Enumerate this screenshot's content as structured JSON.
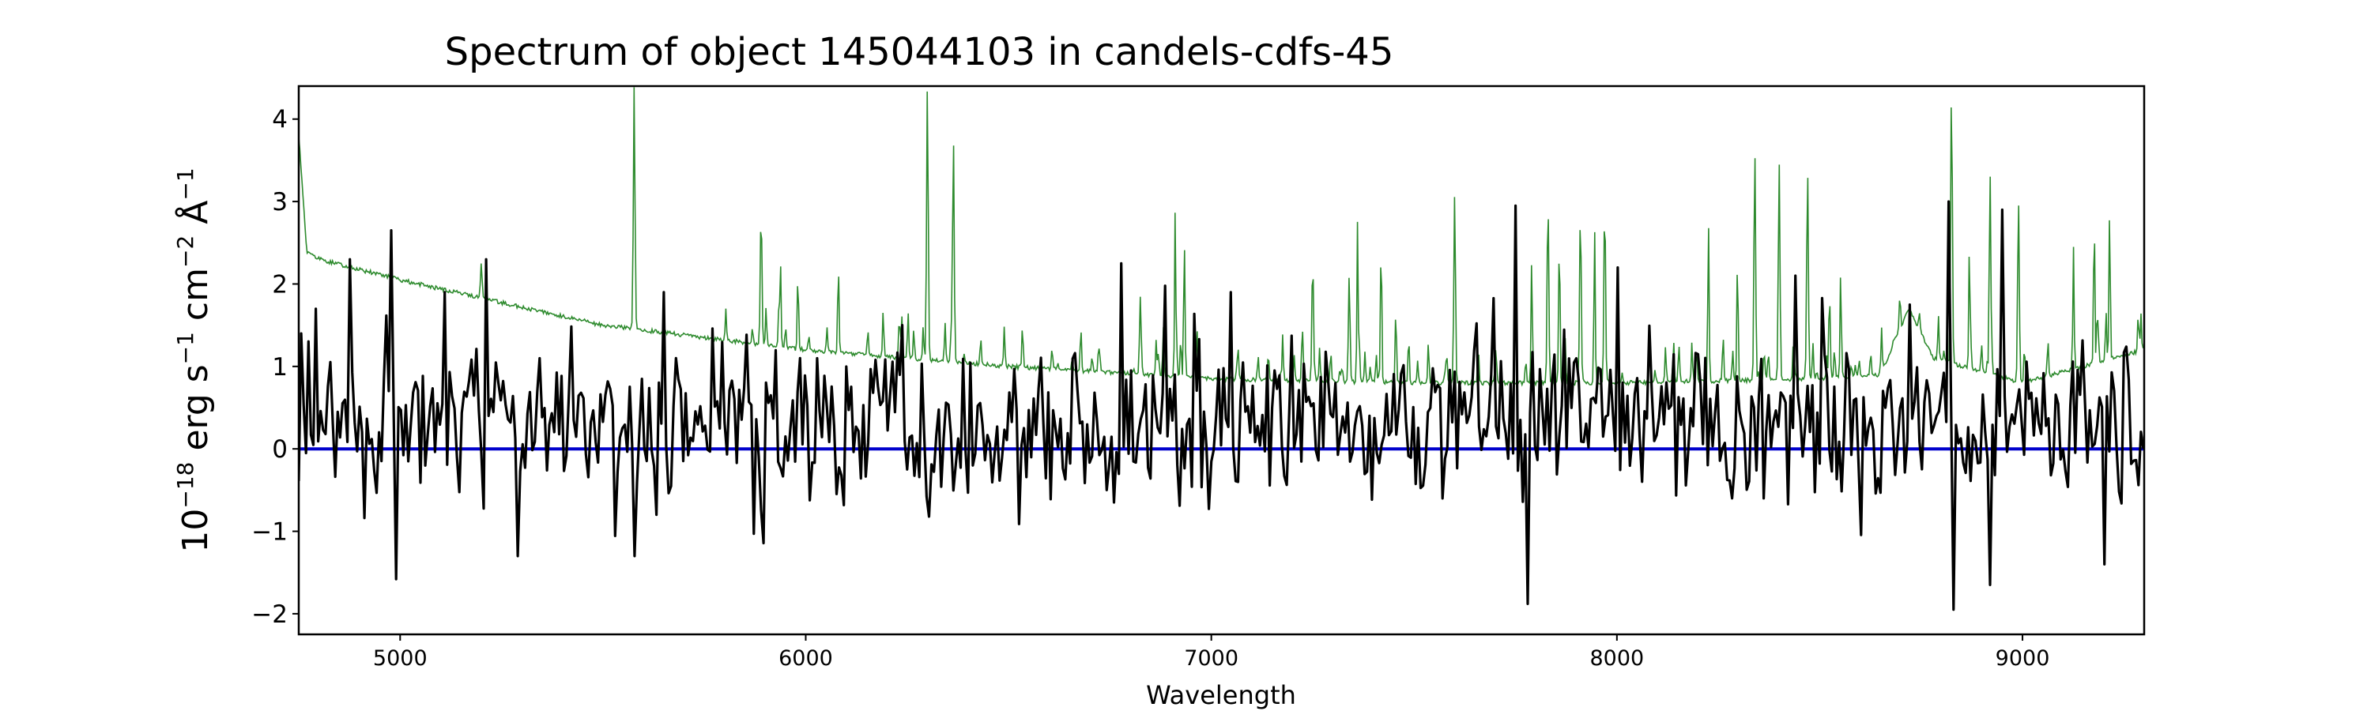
{
  "chart_data": {
    "type": "line",
    "title": "Spectrum of object 145044103 in candels-cdfs-45",
    "xlabel": "Wavelength",
    "ylabel": {
      "base": "10",
      "exp_main": "−18",
      "text_erg": " erg s",
      "exp_s": "−1",
      "text_cm": " cm",
      "exp_cm": "−2",
      "text_angstrom": " Å",
      "exp_angstrom": "−1"
    },
    "xlim": [
      4750,
      9300
    ],
    "ylim": [
      -2.25,
      4.4
    ],
    "xticks": [
      5000,
      6000,
      7000,
      8000,
      9000
    ],
    "yticks": [
      -2,
      -1,
      0,
      1,
      2,
      3,
      4
    ],
    "ytick_labels": [
      "−2",
      "−1",
      "0",
      "1",
      "2",
      "3",
      "4"
    ],
    "grid": false,
    "series": [
      {
        "role": "flux",
        "color": "#000000",
        "noise_sigma": 0.6,
        "anchors": [
          {
            "x": 4755,
            "y": 1.4
          },
          {
            "x": 4790,
            "y": 1.7
          },
          {
            "x": 4875,
            "y": 2.3
          },
          {
            "x": 4980,
            "y": 2.65
          },
          {
            "x": 4990,
            "y": -1.58
          },
          {
            "x": 5110,
            "y": 1.9
          },
          {
            "x": 5210,
            "y": 2.3
          },
          {
            "x": 5290,
            "y": -1.3
          },
          {
            "x": 5580,
            "y": -1.3
          },
          {
            "x": 5650,
            "y": 1.9
          },
          {
            "x": 6240,
            "y": 1.5
          },
          {
            "x": 7050,
            "y": 1.9
          },
          {
            "x": 7750,
            "y": 2.95
          },
          {
            "x": 7780,
            "y": -1.88
          },
          {
            "x": 8000,
            "y": 2.2
          },
          {
            "x": 8440,
            "y": 2.1
          },
          {
            "x": 8720,
            "y": 1.75
          },
          {
            "x": 8820,
            "y": 3.0
          },
          {
            "x": 8830,
            "y": -1.95
          },
          {
            "x": 8920,
            "y": -1.65
          },
          {
            "x": 8950,
            "y": 2.9
          },
          {
            "x": 9200,
            "y": -1.4
          },
          {
            "x": 9300,
            "y": 0.0
          }
        ]
      },
      {
        "role": "model",
        "color": "#2e8b2e",
        "continuum": [
          {
            "x": 4750,
            "y": 3.8
          },
          {
            "x": 4770,
            "y": 2.4
          },
          {
            "x": 4800,
            "y": 2.3
          },
          {
            "x": 5000,
            "y": 2.05
          },
          {
            "x": 5500,
            "y": 1.5
          },
          {
            "x": 6000,
            "y": 1.2
          },
          {
            "x": 6500,
            "y": 1.0
          },
          {
            "x": 7000,
            "y": 0.85
          },
          {
            "x": 7500,
            "y": 0.8
          },
          {
            "x": 8000,
            "y": 0.8
          },
          {
            "x": 8500,
            "y": 0.85
          },
          {
            "x": 8650,
            "y": 0.9
          },
          {
            "x": 8720,
            "y": 1.7
          },
          {
            "x": 8780,
            "y": 1.1
          },
          {
            "x": 9000,
            "y": 0.8
          },
          {
            "x": 9300,
            "y": 1.2
          }
        ],
        "emission_lines": [
          {
            "x": 5577,
            "y": 4.4
          },
          {
            "x": 5890,
            "y": 2.9
          },
          {
            "x": 6300,
            "y": 4.4
          },
          {
            "x": 6364,
            "y": 3.8
          },
          {
            "x": 5200,
            "y": 2.25
          },
          {
            "x": 6825,
            "y": 1.85
          },
          {
            "x": 7250,
            "y": 2.3
          },
          {
            "x": 7340,
            "y": 2.1
          },
          {
            "x": 7600,
            "y": 3.1
          },
          {
            "x": 7830,
            "y": 3.05
          },
          {
            "x": 7910,
            "y": 2.9
          },
          {
            "x": 7970,
            "y": 3.0
          },
          {
            "x": 8340,
            "y": 3.65
          },
          {
            "x": 8400,
            "y": 3.5
          },
          {
            "x": 8470,
            "y": 3.4
          },
          {
            "x": 8825,
            "y": 4.4
          },
          {
            "x": 8920,
            "y": 3.35
          },
          {
            "x": 8990,
            "y": 3.05
          }
        ]
      },
      {
        "role": "zero",
        "color": "#0000cc",
        "y": 0
      }
    ]
  }
}
